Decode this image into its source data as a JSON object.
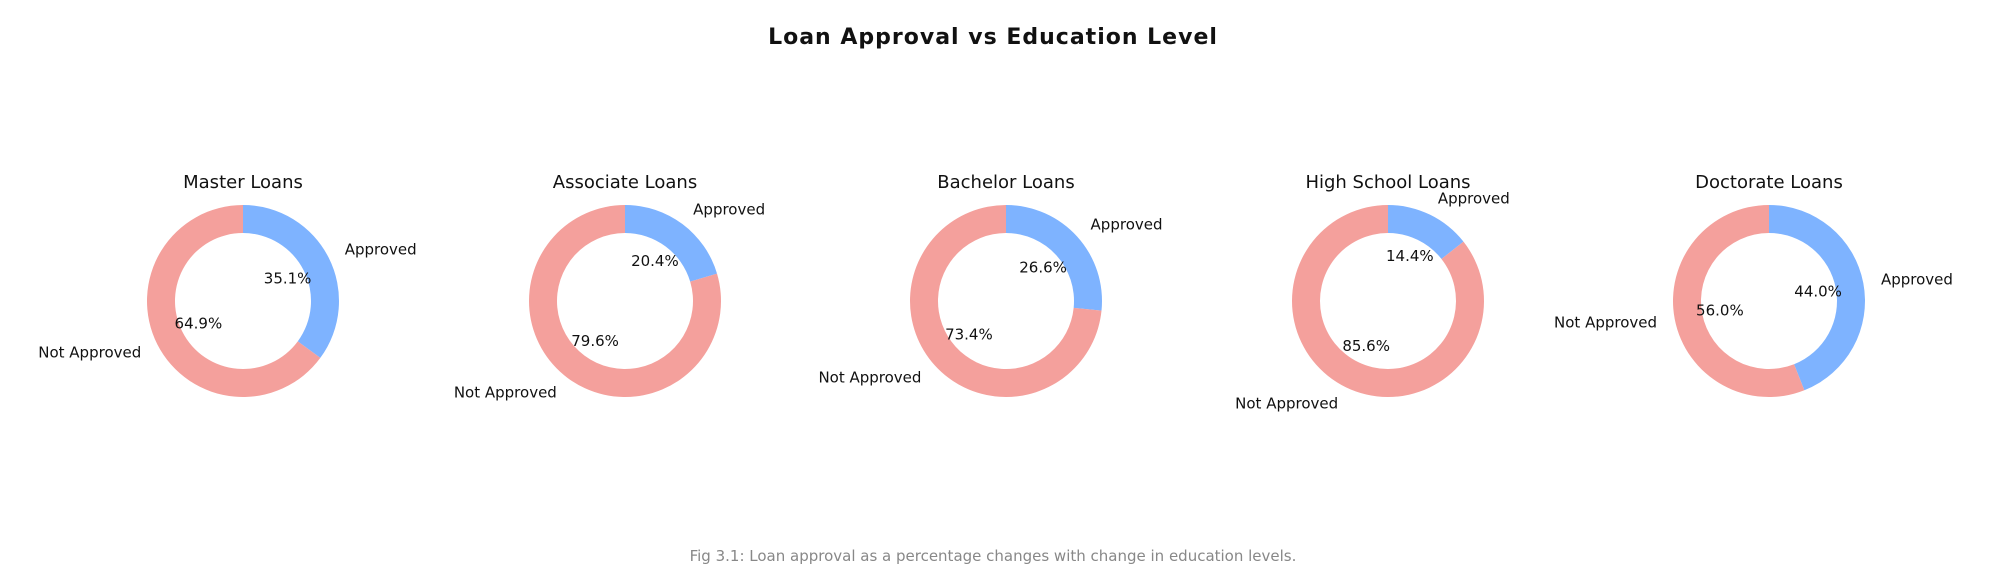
{
  "figure": {
    "title": "Loan Approval vs Education Level",
    "caption": "Fig 3.1: Loan approval as a percentage changes with change in education levels."
  },
  "colors": {
    "approved": "#7EB3FF",
    "not_approved": "#F4A09C",
    "text": "#111111",
    "caption": "#888888"
  },
  "chart_data": [
    {
      "type": "pie",
      "style": "donut",
      "title": "Master Loans",
      "labels": [
        "Approved",
        "Not Approved"
      ],
      "values": [
        35.1,
        64.9
      ],
      "value_labels": [
        "35.1%",
        "64.9%"
      ]
    },
    {
      "type": "pie",
      "style": "donut",
      "title": "Associate Loans",
      "labels": [
        "Approved",
        "Not Approved"
      ],
      "values": [
        20.4,
        79.6
      ],
      "value_labels": [
        "20.4%",
        "79.6%"
      ]
    },
    {
      "type": "pie",
      "style": "donut",
      "title": "Bachelor Loans",
      "labels": [
        "Approved",
        "Not Approved"
      ],
      "values": [
        26.6,
        73.4
      ],
      "value_labels": [
        "26.6%",
        "73.4%"
      ]
    },
    {
      "type": "pie",
      "style": "donut",
      "title": "High School Loans",
      "labels": [
        "Approved",
        "Not Approved"
      ],
      "values": [
        14.4,
        85.6
      ],
      "value_labels": [
        "14.4%",
        "85.6%"
      ]
    },
    {
      "type": "pie",
      "style": "donut",
      "title": "Doctorate Loans",
      "labels": [
        "Approved",
        "Not Approved"
      ],
      "values": [
        44.0,
        56.0
      ],
      "value_labels": [
        "44.0%",
        "56.0%"
      ]
    }
  ]
}
